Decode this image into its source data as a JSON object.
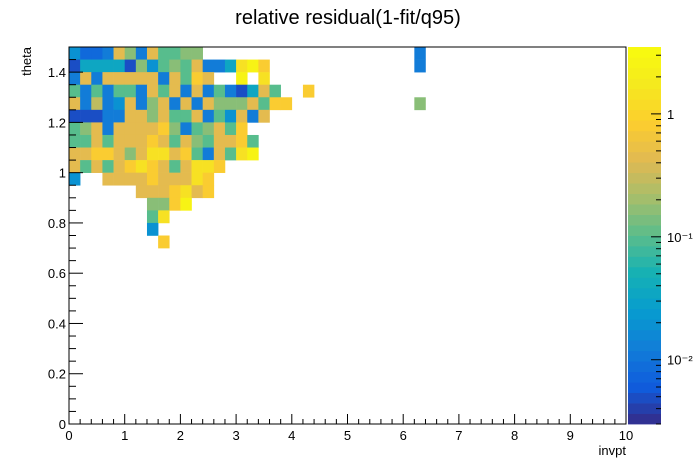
{
  "chart_data": {
    "type": "heatmap",
    "title": "relative residual(1-fit/q95)",
    "xlabel": "invpt",
    "ylabel": "theta",
    "xlim": [
      0,
      10
    ],
    "ylim": [
      0,
      1.5
    ],
    "x_ticks": [
      "0",
      "1",
      "2",
      "3",
      "4",
      "5",
      "6",
      "7",
      "8",
      "9",
      "10"
    ],
    "y_ticks": [
      "0",
      "0.2",
      "0.4",
      "0.6",
      "0.8",
      "1",
      "1.2",
      "1.4"
    ],
    "x_tick_values": [
      0,
      1,
      2,
      3,
      4,
      5,
      6,
      7,
      8,
      9,
      10
    ],
    "y_tick_values": [
      0,
      0.2,
      0.4,
      0.6,
      0.8,
      1.0,
      1.2,
      1.4
    ],
    "z_scale": "log",
    "z_range": [
      0.003,
      3.5
    ],
    "z_ticks": [
      {
        "value": 1,
        "label": "1"
      },
      {
        "value": 0.1,
        "label": "10⁻¹"
      },
      {
        "value": 0.01,
        "label": "10⁻²"
      }
    ],
    "palette": "parula",
    "bin_size": {
      "invpt": 0.2,
      "theta": 0.05
    },
    "cell_legend": {
      "a": 0.005,
      "b": 0.008,
      "c": 0.012,
      "d": 0.02,
      "e": 0.035,
      "f": 0.06,
      "g": 0.1,
      "h": 0.16,
      "i": 0.28,
      "j": 0.45,
      "k": 0.8,
      "l": 1.4,
      "m": 2.6
    },
    "rows": [
      {
        "theta": 1.4,
        "cells": "dbbcjhcjgghh...................c"
      },
      {
        "theta": 1.45,
        "cells": "dbbcjhcjgghh...................c"
      },
      {
        "theta": 1.4,
        "cells": "aeeeeahdghgjccelmk..............."
      },
      {
        "theta": 1.35,
        "cells": "cjcjjjjjcjgkj..m.l..............."
      },
      {
        "theta": 1.3,
        "cells": "gcgcggcjgjcjcgcaejg..k..........."
      },
      {
        "theta": 1.25,
        "cells": "jcicdjchjcjcjhhhjgkk...........h."
      },
      {
        "theta": 1.2,
        "cells": "aaaccjjhjggjcgdjcj.............."
      },
      {
        "theta": 1.15,
        "cells": "ghjcjjjjkhcghjgk................"
      },
      {
        "theta": 1.1,
        "cells": "ggjgjjjkjgjhgjjkg..............."
      },
      {
        "theta": 1.05,
        "cells": "jjkkjhjlljkgcjglm..............."
      },
      {
        "theta": 1.0,
        "cells": "jgjgjklkjgjllk.................."
      },
      {
        "theta": 0.95,
        "cells": "d..jjjjkjjjlk..................."
      },
      {
        "theta": 0.9,
        "cells": "......jjjkljk..................."
      },
      {
        "theta": 0.85,
        "cells": ".......hhkm....................."
      },
      {
        "theta": 0.8,
        "cells": ".......gl......................."
      },
      {
        "theta": 0.75,
        "cells": ".......d........................"
      },
      {
        "theta": 0.7,
        "cells": "........k......................."
      }
    ],
    "notes": ""
  }
}
